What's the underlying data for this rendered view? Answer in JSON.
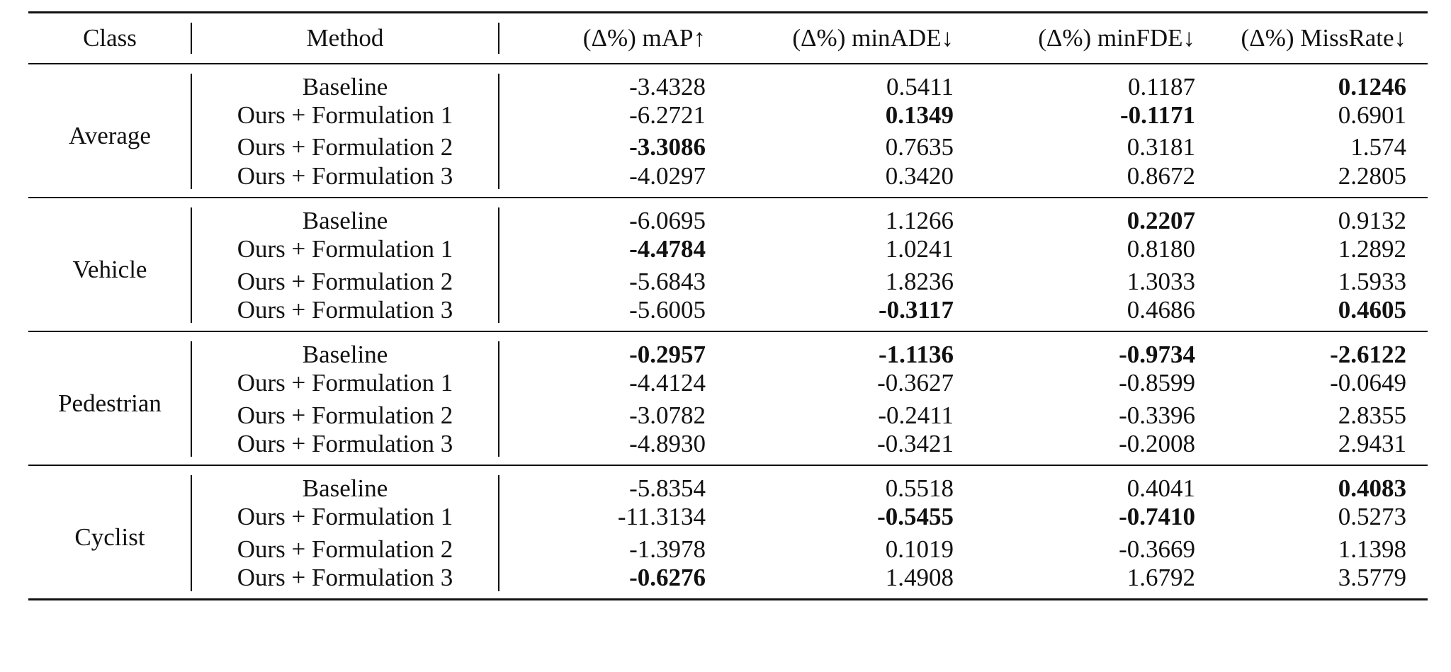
{
  "table": {
    "headers": {
      "class": "Class",
      "method": "Method",
      "map": "(Δ%) mAP↑",
      "minade": "(Δ%) minADE↓",
      "minfde": "(Δ%) minFDE↓",
      "missrate": "(Δ%) MissRate↓"
    },
    "groups": [
      {
        "class": "Average",
        "rows": [
          {
            "method": "Baseline",
            "map": "-3.4328",
            "minade": "0.5411",
            "minfde": "0.1187",
            "missrate": "0.1246",
            "bold": [
              "missrate"
            ]
          },
          {
            "method": "Ours + Formulation 1",
            "map": "-6.2721",
            "minade": "0.1349",
            "minfde": "-0.1171",
            "missrate": "0.6901",
            "bold": [
              "minade",
              "minfde"
            ]
          },
          {
            "method": "Ours + Formulation 2",
            "map": "-3.3086",
            "minade": "0.7635",
            "minfde": "0.3181",
            "missrate": "1.574",
            "bold": [
              "map"
            ]
          },
          {
            "method": "Ours + Formulation 3",
            "map": "-4.0297",
            "minade": "0.3420",
            "minfde": "0.8672",
            "missrate": "2.2805",
            "bold": []
          }
        ]
      },
      {
        "class": "Vehicle",
        "rows": [
          {
            "method": "Baseline",
            "map": "-6.0695",
            "minade": "1.1266",
            "minfde": "0.2207",
            "missrate": "0.9132",
            "bold": [
              "minfde"
            ]
          },
          {
            "method": "Ours + Formulation 1",
            "map": "-4.4784",
            "minade": "1.0241",
            "minfde": "0.8180",
            "missrate": "1.2892",
            "bold": [
              "map"
            ]
          },
          {
            "method": "Ours + Formulation 2",
            "map": "-5.6843",
            "minade": "1.8236",
            "minfde": "1.3033",
            "missrate": "1.5933",
            "bold": []
          },
          {
            "method": "Ours + Formulation 3",
            "map": "-5.6005",
            "minade": "-0.3117",
            "minfde": "0.4686",
            "missrate": "0.4605",
            "bold": [
              "minade",
              "missrate"
            ]
          }
        ]
      },
      {
        "class": "Pedestrian",
        "rows": [
          {
            "method": "Baseline",
            "map": "-0.2957",
            "minade": "-1.1136",
            "minfde": "-0.9734",
            "missrate": "-2.6122",
            "bold": [
              "map",
              "minade",
              "minfde",
              "missrate"
            ]
          },
          {
            "method": "Ours + Formulation 1",
            "map": "-4.4124",
            "minade": "-0.3627",
            "minfde": "-0.8599",
            "missrate": "-0.0649",
            "bold": []
          },
          {
            "method": "Ours + Formulation 2",
            "map": "-3.0782",
            "minade": "-0.2411",
            "minfde": "-0.3396",
            "missrate": "2.8355",
            "bold": []
          },
          {
            "method": "Ours + Formulation 3",
            "map": "-4.8930",
            "minade": "-0.3421",
            "minfde": "-0.2008",
            "missrate": "2.9431",
            "bold": []
          }
        ]
      },
      {
        "class": "Cyclist",
        "rows": [
          {
            "method": "Baseline",
            "map": "-5.8354",
            "minade": "0.5518",
            "minfde": "0.4041",
            "missrate": "0.4083",
            "bold": [
              "missrate"
            ]
          },
          {
            "method": "Ours + Formulation 1",
            "map": "-11.3134",
            "minade": "-0.5455",
            "minfde": "-0.7410",
            "missrate": "0.5273",
            "bold": [
              "minade",
              "minfde"
            ]
          },
          {
            "method": "Ours + Formulation 2",
            "map": "-1.3978",
            "minade": "0.1019",
            "minfde": "-0.3669",
            "missrate": "1.1398",
            "bold": []
          },
          {
            "method": "Ours + Formulation 3",
            "map": "-0.6276",
            "minade": "1.4908",
            "minfde": "1.6792",
            "missrate": "3.5779",
            "bold": [
              "map"
            ]
          }
        ]
      }
    ]
  }
}
